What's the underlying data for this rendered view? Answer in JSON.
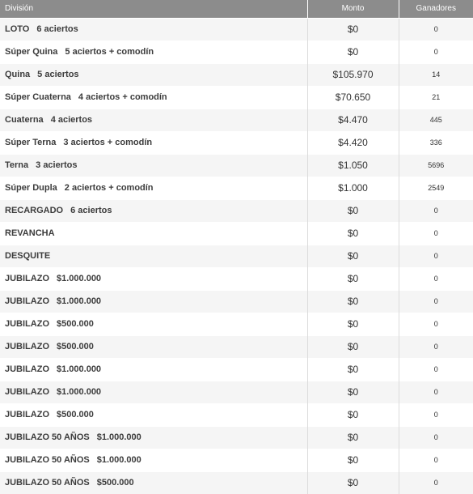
{
  "headers": {
    "division": "División",
    "monto": "Monto",
    "ganadores": "Ganadores"
  },
  "rows": [
    {
      "name": "LOTO",
      "detail": "6 aciertos",
      "monto": "$0",
      "ganadores": "0"
    },
    {
      "name": "Súper Quina",
      "detail": "5 aciertos + comodín",
      "monto": "$0",
      "ganadores": "0"
    },
    {
      "name": "Quina",
      "detail": "5 aciertos",
      "monto": "$105.970",
      "ganadores": "14"
    },
    {
      "name": "Súper Cuaterna",
      "detail": "4 aciertos + comodín",
      "monto": "$70.650",
      "ganadores": "21"
    },
    {
      "name": "Cuaterna",
      "detail": "4 aciertos",
      "monto": "$4.470",
      "ganadores": "445"
    },
    {
      "name": "Súper Terna",
      "detail": "3 aciertos + comodín",
      "monto": "$4.420",
      "ganadores": "336"
    },
    {
      "name": "Terna",
      "detail": "3 aciertos",
      "monto": "$1.050",
      "ganadores": "5696"
    },
    {
      "name": "Súper Dupla",
      "detail": "2 aciertos + comodín",
      "monto": "$1.000",
      "ganadores": "2549"
    },
    {
      "name": "RECARGADO",
      "detail": "6 aciertos",
      "monto": "$0",
      "ganadores": "0"
    },
    {
      "name": "REVANCHA",
      "detail": "",
      "monto": "$0",
      "ganadores": "0"
    },
    {
      "name": "DESQUITE",
      "detail": "",
      "monto": "$0",
      "ganadores": "0"
    },
    {
      "name": "JUBILAZO",
      "detail": "$1.000.000",
      "monto": "$0",
      "ganadores": "0"
    },
    {
      "name": "JUBILAZO",
      "detail": "$1.000.000",
      "monto": "$0",
      "ganadores": "0"
    },
    {
      "name": "JUBILAZO",
      "detail": "$500.000",
      "monto": "$0",
      "ganadores": "0"
    },
    {
      "name": "JUBILAZO",
      "detail": "$500.000",
      "monto": "$0",
      "ganadores": "0"
    },
    {
      "name": "JUBILAZO",
      "detail": "$1.000.000",
      "monto": "$0",
      "ganadores": "0"
    },
    {
      "name": "JUBILAZO",
      "detail": "$1.000.000",
      "monto": "$0",
      "ganadores": "0"
    },
    {
      "name": "JUBILAZO",
      "detail": "$500.000",
      "monto": "$0",
      "ganadores": "0"
    },
    {
      "name": "JUBILAZO 50 AÑOS",
      "detail": "$1.000.000",
      "monto": "$0",
      "ganadores": "0"
    },
    {
      "name": "JUBILAZO 50 AÑOS",
      "detail": "$1.000.000",
      "monto": "$0",
      "ganadores": "0"
    },
    {
      "name": "JUBILAZO 50 AÑOS",
      "detail": "$500.000",
      "monto": "$0",
      "ganadores": "0"
    }
  ]
}
